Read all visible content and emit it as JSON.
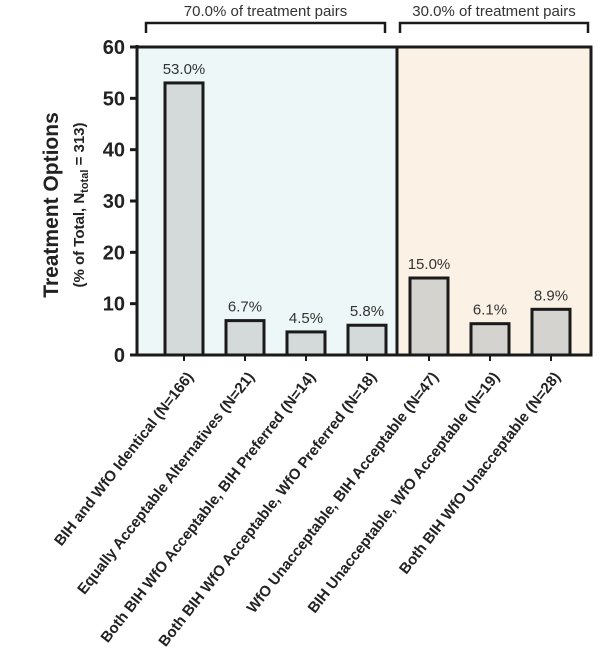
{
  "chart_data": {
    "type": "bar",
    "title": "",
    "xlabel": "",
    "ylabel": "Treatment Options",
    "ylabel_sub": {
      "prefix": "(% of Total, N",
      "subscript": "total",
      "suffix": " = 313)"
    },
    "ylim": [
      0,
      60
    ],
    "yticks": [
      "0",
      "10",
      "20",
      "30",
      "40",
      "50",
      "60"
    ],
    "ytick_values": [
      0,
      10,
      20,
      30,
      40,
      50,
      60
    ],
    "categories": [
      "BIH and WfO Identical (N=166)",
      "Equally Acceptable Alternatives (N=21)",
      "Both BIH WfO Acceptable, BIH Preferred (N=14)",
      "Both BIH WfO Acceptable, WfO Preferred (N=18)",
      "WfO Unacceptable, BIH Acceptable (N=47)",
      "BIH Unacceptable, WfO Acceptable (N=19)",
      "Both BIH WfO Unacceptable (N=28)"
    ],
    "values": [
      53.0,
      6.7,
      4.5,
      5.8,
      15.0,
      6.1,
      8.9
    ],
    "data_labels": [
      "53.0%",
      "6.7%",
      "4.5%",
      "5.8%",
      "15.0%",
      "6.1%",
      "8.9%"
    ],
    "groups": [
      {
        "label": "70.0% of treatment pairs",
        "categories": [
          0,
          1,
          2,
          3
        ],
        "color": "#eef7f7"
      },
      {
        "label": "30.0% of treatment pairs",
        "categories": [
          4,
          5,
          6
        ],
        "color": "#fbf2e5"
      }
    ],
    "colors": {
      "bar_fill": "#d4d9d9",
      "bar_fill_right": "#d5d3d0",
      "bar_stroke": "#1a1a1a",
      "axis": "#1a1a1a"
    }
  }
}
